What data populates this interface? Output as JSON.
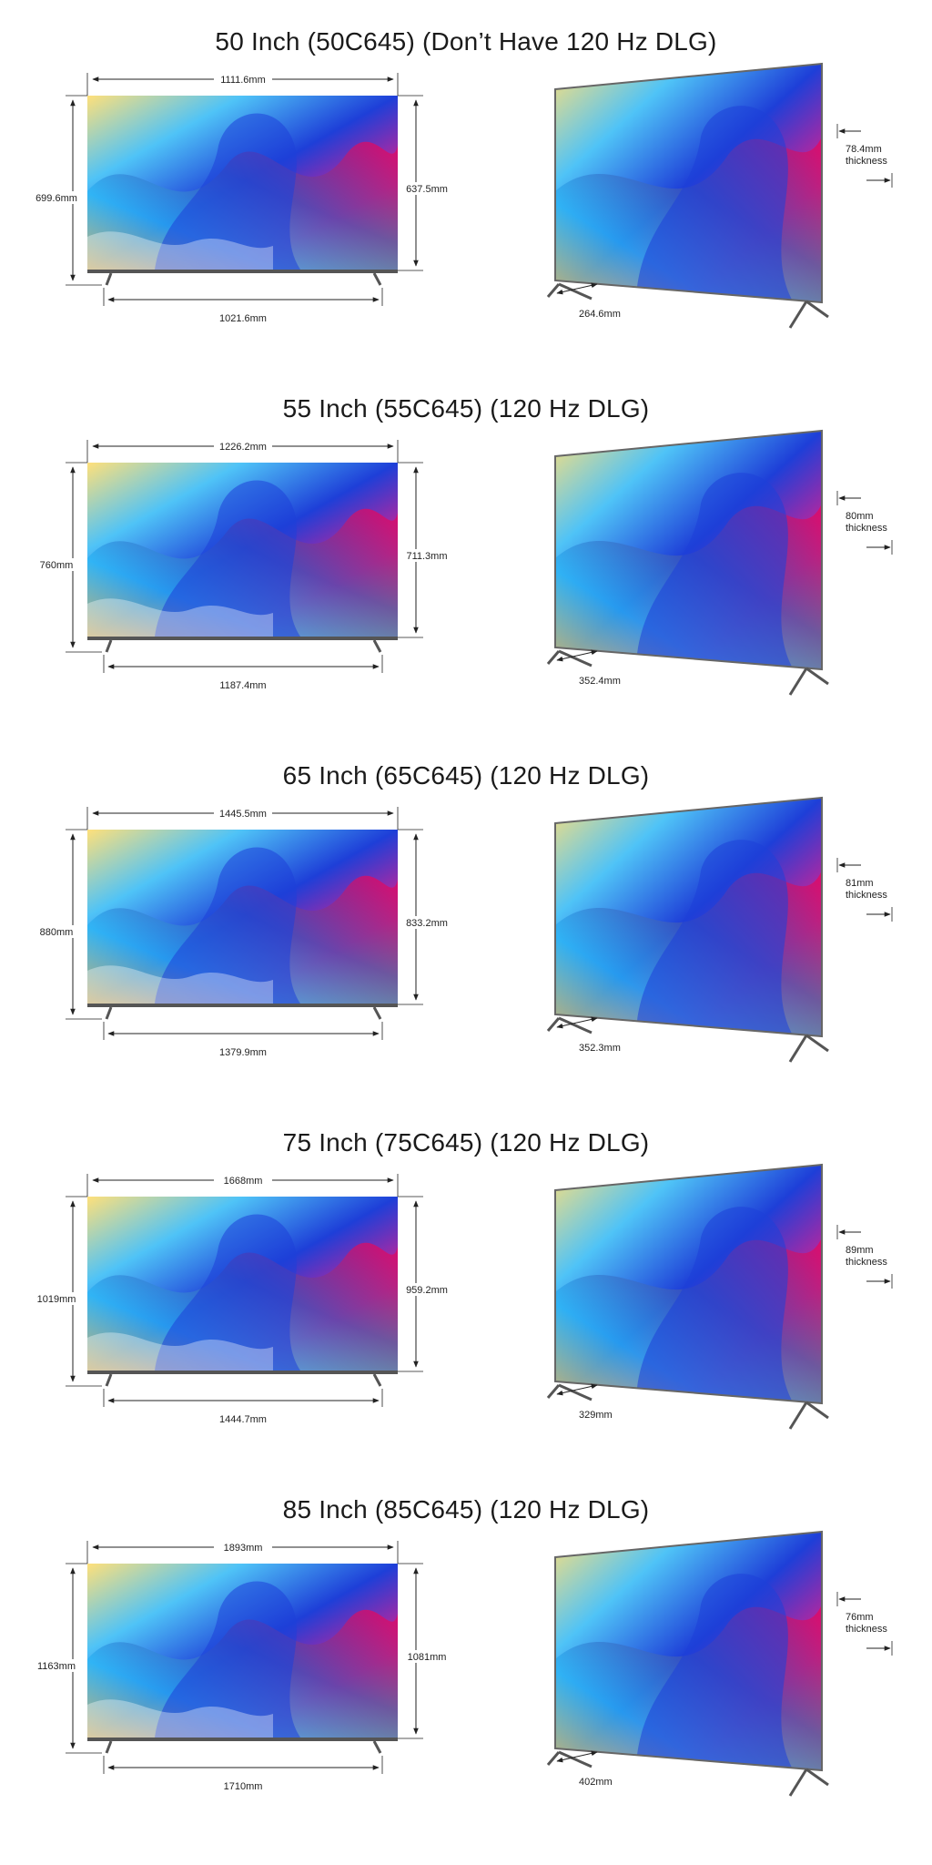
{
  "models": [
    {
      "title": "50 Inch (50C645) (Don’t Have 120 Hz DLG)",
      "width": "1111.6mm",
      "height_with_stand": "699.6mm",
      "height_panel": "637.5mm",
      "stand_span": "1021.6mm",
      "thickness_value": "78.4mm",
      "thickness_label": "thickness",
      "stand_depth": "264.6mm"
    },
    {
      "title": "55 Inch (55C645) (120 Hz DLG)",
      "width": "1226.2mm",
      "height_with_stand": "760mm",
      "height_panel": "711.3mm",
      "stand_span": "1187.4mm",
      "thickness_value": "80mm",
      "thickness_label": "thickness",
      "stand_depth": "352.4mm"
    },
    {
      "title": "65 Inch (65C645) (120 Hz DLG)",
      "width": "1445.5mm",
      "height_with_stand": "880mm",
      "height_panel": "833.2mm",
      "stand_span": "1379.9mm",
      "thickness_value": "81mm",
      "thickness_label": "thickness",
      "stand_depth": "352.3mm"
    },
    {
      "title": "75 Inch (75C645) (120 Hz DLG)",
      "width": "1668mm",
      "height_with_stand": "1019mm",
      "height_panel": "959.2mm",
      "stand_span": "1444.7mm",
      "thickness_value": "89mm",
      "thickness_label": "thickness",
      "stand_depth": "329mm"
    },
    {
      "title": "85 Inch (85C645) (120 Hz DLG)",
      "width": "1893mm",
      "height_with_stand": "1163mm",
      "height_panel": "1081mm",
      "stand_span": "1710mm",
      "thickness_value": "76mm",
      "thickness_label": "thickness",
      "stand_depth": "402mm"
    }
  ]
}
